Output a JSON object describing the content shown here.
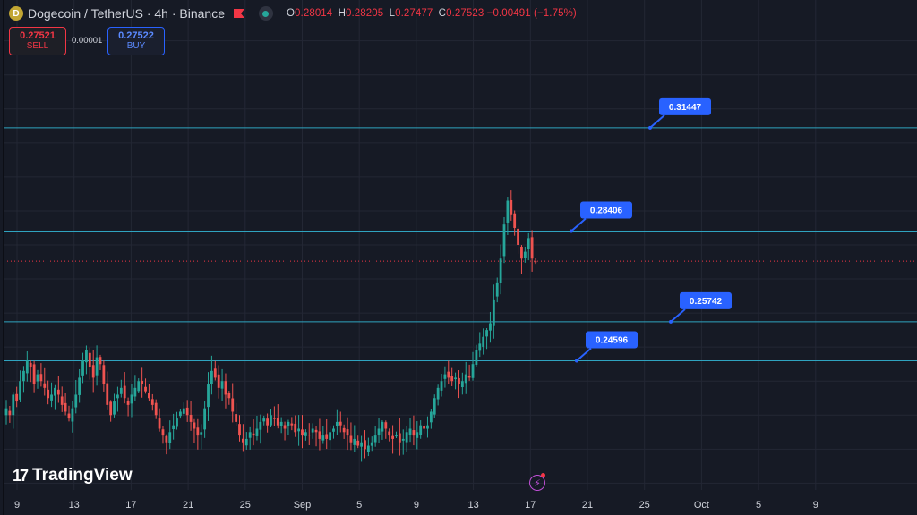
{
  "legend": {
    "symbol_icon": "dogecoin-icon",
    "title": "Dogecoin / TetherUS · 4h · Binance",
    "ohlc": {
      "o_label": "O",
      "o": "0.28014",
      "h_label": "H",
      "h": "0.28205",
      "l_label": "L",
      "l": "0.27477",
      "c_label": "C",
      "c": "0.27523",
      "change": "−0.00491 (−1.75%)"
    }
  },
  "trade": {
    "sell_price": "0.27521",
    "sell_label": "SELL",
    "spread": "0.00001",
    "buy_price": "0.27522",
    "buy_label": "BUY"
  },
  "brand": {
    "name": "TradingView",
    "mark": "17"
  },
  "colors": {
    "background": "#161a25",
    "grid": "#232734",
    "up": "#26a69a",
    "down": "#ef5350",
    "level_line": "#2fa3bf",
    "callout": "#2962ff",
    "price_line": "#f23645"
  },
  "chart_data": {
    "type": "candlestick",
    "ylim": [
      0.208,
      0.352
    ],
    "price_line": 0.27523,
    "x_ticks": [
      "9",
      "13",
      "17",
      "21",
      "25",
      "Sep",
      "5",
      "9",
      "13",
      "17",
      "21",
      "25",
      "Oct",
      "5",
      "9"
    ],
    "levels": [
      0.31447,
      0.28406,
      0.25742,
      0.24596
    ],
    "callouts": [
      {
        "label": "0.31447",
        "value": 0.31447
      },
      {
        "label": "0.28406",
        "value": 0.28406
      },
      {
        "label": "0.25742",
        "value": 0.25742
      },
      {
        "label": "0.24596",
        "value": 0.24596
      }
    ],
    "close_path": [
      0.232,
      0.23,
      0.236,
      0.234,
      0.24,
      0.243,
      0.246,
      0.244,
      0.239,
      0.242,
      0.24,
      0.238,
      0.235,
      0.236,
      0.238,
      0.236,
      0.233,
      0.231,
      0.229,
      0.232,
      0.236,
      0.241,
      0.246,
      0.249,
      0.244,
      0.241,
      0.247,
      0.245,
      0.239,
      0.233,
      0.23,
      0.234,
      0.236,
      0.238,
      0.235,
      0.233,
      0.236,
      0.238,
      0.24,
      0.239,
      0.237,
      0.235,
      0.233,
      0.23,
      0.226,
      0.224,
      0.222,
      0.225,
      0.227,
      0.229,
      0.231,
      0.232,
      0.23,
      0.228,
      0.226,
      0.224,
      0.225,
      0.232,
      0.239,
      0.243,
      0.241,
      0.238,
      0.24,
      0.236,
      0.235,
      0.231,
      0.228,
      0.224,
      0.222,
      0.223,
      0.225,
      0.224,
      0.226,
      0.228,
      0.229,
      0.227,
      0.23,
      0.229,
      0.227,
      0.228,
      0.226,
      0.228,
      0.227,
      0.225,
      0.226,
      0.224,
      0.225,
      0.224,
      0.226,
      0.225,
      0.223,
      0.224,
      0.223,
      0.225,
      0.226,
      0.228,
      0.227,
      0.225,
      0.224,
      0.222,
      0.223,
      0.221,
      0.222,
      0.22,
      0.221,
      0.222,
      0.224,
      0.226,
      0.228,
      0.226,
      0.224,
      0.223,
      0.224,
      0.222,
      0.223,
      0.225,
      0.226,
      0.224,
      0.225,
      0.227,
      0.226,
      0.227,
      0.231,
      0.235,
      0.238,
      0.24,
      0.242,
      0.241,
      0.24,
      0.241,
      0.239,
      0.24,
      0.242,
      0.241,
      0.245,
      0.249,
      0.251,
      0.253,
      0.255,
      0.257,
      0.264,
      0.269,
      0.276,
      0.286,
      0.293,
      0.289,
      0.285,
      0.28,
      0.276,
      0.278,
      0.282,
      0.276,
      0.275
    ]
  }
}
